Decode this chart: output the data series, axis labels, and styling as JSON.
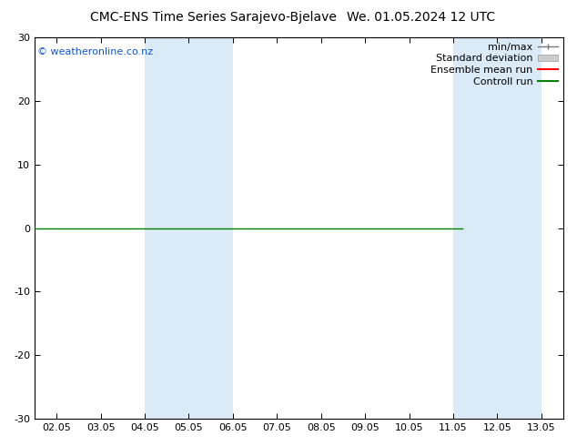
{
  "title_left": "CMC-ENS Time Series Sarajevo-Bjelave",
  "title_right": "We. 01.05.2024 12 UTC",
  "ylim": [
    -30,
    30
  ],
  "yticks": [
    -30,
    -20,
    -10,
    0,
    10,
    20,
    30
  ],
  "x_tick_labels": [
    "02.05",
    "03.05",
    "04.05",
    "05.05",
    "06.05",
    "07.05",
    "08.05",
    "09.05",
    "10.05",
    "11.05",
    "12.05",
    "13.05"
  ],
  "x_tick_positions": [
    0,
    1,
    2,
    3,
    4,
    5,
    6,
    7,
    8,
    9,
    10,
    11
  ],
  "watermark": "© weatheronline.co.nz",
  "shaded_bands": [
    {
      "x_start": 2,
      "x_end": 4
    },
    {
      "x_start": 9,
      "x_end": 11
    }
  ],
  "shaded_color": "#daeaf7",
  "green_line_x_end": 9.2,
  "legend_items": [
    {
      "label": "min/max",
      "color": "#777777",
      "type": "minmax"
    },
    {
      "label": "Standard deviation",
      "color": "#cccccc",
      "type": "box"
    },
    {
      "label": "Ensemble mean run",
      "color": "red",
      "type": "line"
    },
    {
      "label": "Controll run",
      "color": "green",
      "type": "line"
    }
  ],
  "background_color": "#ffffff",
  "font_size_title": 10,
  "font_size_ticks": 8,
  "font_size_watermark": 8,
  "font_size_legend": 8,
  "watermark_color": "#1155cc"
}
